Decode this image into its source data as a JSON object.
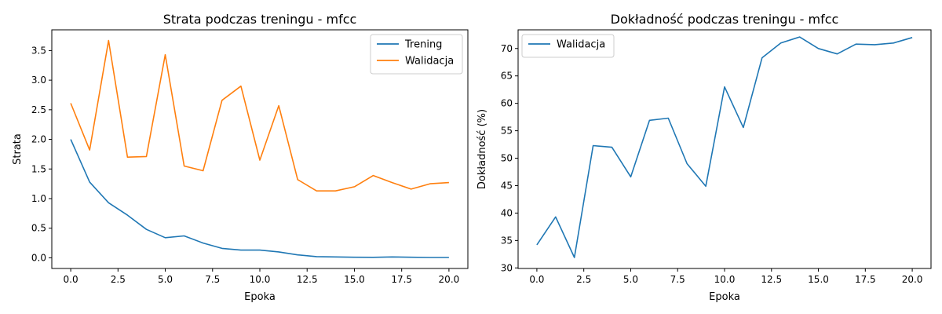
{
  "chart_data": [
    {
      "type": "line",
      "title": "Strata podczas treningu - mfcc",
      "xlabel": "Epoka",
      "ylabel": "Strata",
      "xlim": [
        -1,
        21
      ],
      "ylim": [
        -0.18,
        3.85
      ],
      "xticks": [
        "0.0",
        "2.5",
        "5.0",
        "7.5",
        "10.0",
        "12.5",
        "15.0",
        "17.5",
        "20.0"
      ],
      "yticks": [
        "0.0",
        "0.5",
        "1.0",
        "1.5",
        "2.0",
        "2.5",
        "3.0",
        "3.5"
      ],
      "legend": "top-right",
      "x": [
        0,
        1,
        2,
        3,
        4,
        5,
        6,
        7,
        8,
        9,
        10,
        11,
        12,
        13,
        14,
        15,
        16,
        17,
        18,
        19,
        20
      ],
      "series": [
        {
          "name": "Trening",
          "color": "#1f77b4",
          "values": [
            2.0,
            1.28,
            0.93,
            0.72,
            0.48,
            0.34,
            0.37,
            0.25,
            0.16,
            0.13,
            0.13,
            0.1,
            0.05,
            0.02,
            0.015,
            0.01,
            0.008,
            0.015,
            0.01,
            0.005,
            0.005
          ]
        },
        {
          "name": "Walidacja",
          "color": "#ff7f0e",
          "values": [
            2.61,
            1.82,
            3.67,
            1.7,
            1.71,
            3.43,
            1.55,
            1.47,
            2.66,
            2.9,
            1.65,
            2.57,
            1.32,
            1.13,
            1.13,
            1.2,
            1.39,
            1.27,
            1.16,
            1.25,
            1.27
          ]
        }
      ]
    },
    {
      "type": "line",
      "title": "Dokładność podczas treningu - mfcc",
      "xlabel": "Epoka",
      "ylabel": "Dokładność (%)",
      "xlim": [
        -1,
        21
      ],
      "ylim": [
        29.9,
        73.4
      ],
      "xticks": [
        "0.0",
        "2.5",
        "5.0",
        "7.5",
        "10.0",
        "12.5",
        "15.0",
        "17.5",
        "20.0"
      ],
      "yticks": [
        "30",
        "35",
        "40",
        "45",
        "50",
        "55",
        "60",
        "65",
        "70"
      ],
      "legend": "top-left",
      "x": [
        0,
        1,
        2,
        3,
        4,
        5,
        6,
        7,
        8,
        9,
        10,
        11,
        12,
        13,
        14,
        15,
        16,
        17,
        18,
        19,
        20
      ],
      "series": [
        {
          "name": "Walidacja",
          "color": "#1f77b4",
          "values": [
            34.2,
            39.3,
            31.9,
            52.3,
            52.0,
            46.6,
            56.9,
            57.3,
            49.0,
            44.9,
            63.0,
            55.6,
            68.3,
            71.0,
            72.1,
            70.0,
            69.0,
            70.8,
            70.7,
            71.0,
            72.0
          ]
        }
      ]
    }
  ]
}
